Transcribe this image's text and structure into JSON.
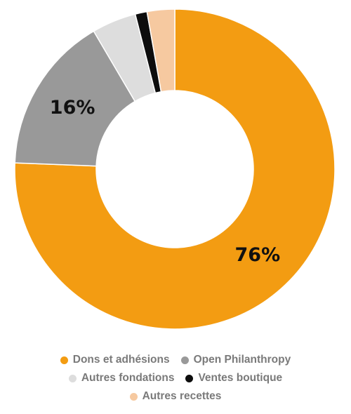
{
  "chart_data": {
    "type": "pie",
    "subtype": "donut",
    "title": "",
    "legend_position": "bottom",
    "categories": [
      "Dons et adhésions",
      "Open Philanthropy",
      "Autres fondations",
      "Ventes boutique",
      "Autres recettes"
    ],
    "values": [
      76,
      16,
      4.5,
      1.2,
      2.8
    ],
    "colors": [
      "#f39c12",
      "#999999",
      "#dddddd",
      "#0d0d0d",
      "#f6c9a0"
    ],
    "data_labels": [
      {
        "index": 0,
        "text": "76%"
      },
      {
        "index": 1,
        "text": "16%"
      }
    ]
  },
  "legend": {
    "rows": [
      [
        {
          "label": "Dons et adhésions",
          "color": "#f39c12",
          "icon": "circle-swatch-icon"
        },
        {
          "label": "Open Philanthropy",
          "color": "#999999",
          "icon": "circle-swatch-icon"
        }
      ],
      [
        {
          "label": "Autres fondations",
          "color": "#dddddd",
          "icon": "circle-swatch-icon"
        },
        {
          "label": "Ventes boutique",
          "color": "#0d0d0d",
          "icon": "circle-swatch-icon"
        }
      ],
      [
        {
          "label": "Autres recettes",
          "color": "#f6c9a0",
          "icon": "circle-swatch-icon"
        }
      ]
    ]
  }
}
